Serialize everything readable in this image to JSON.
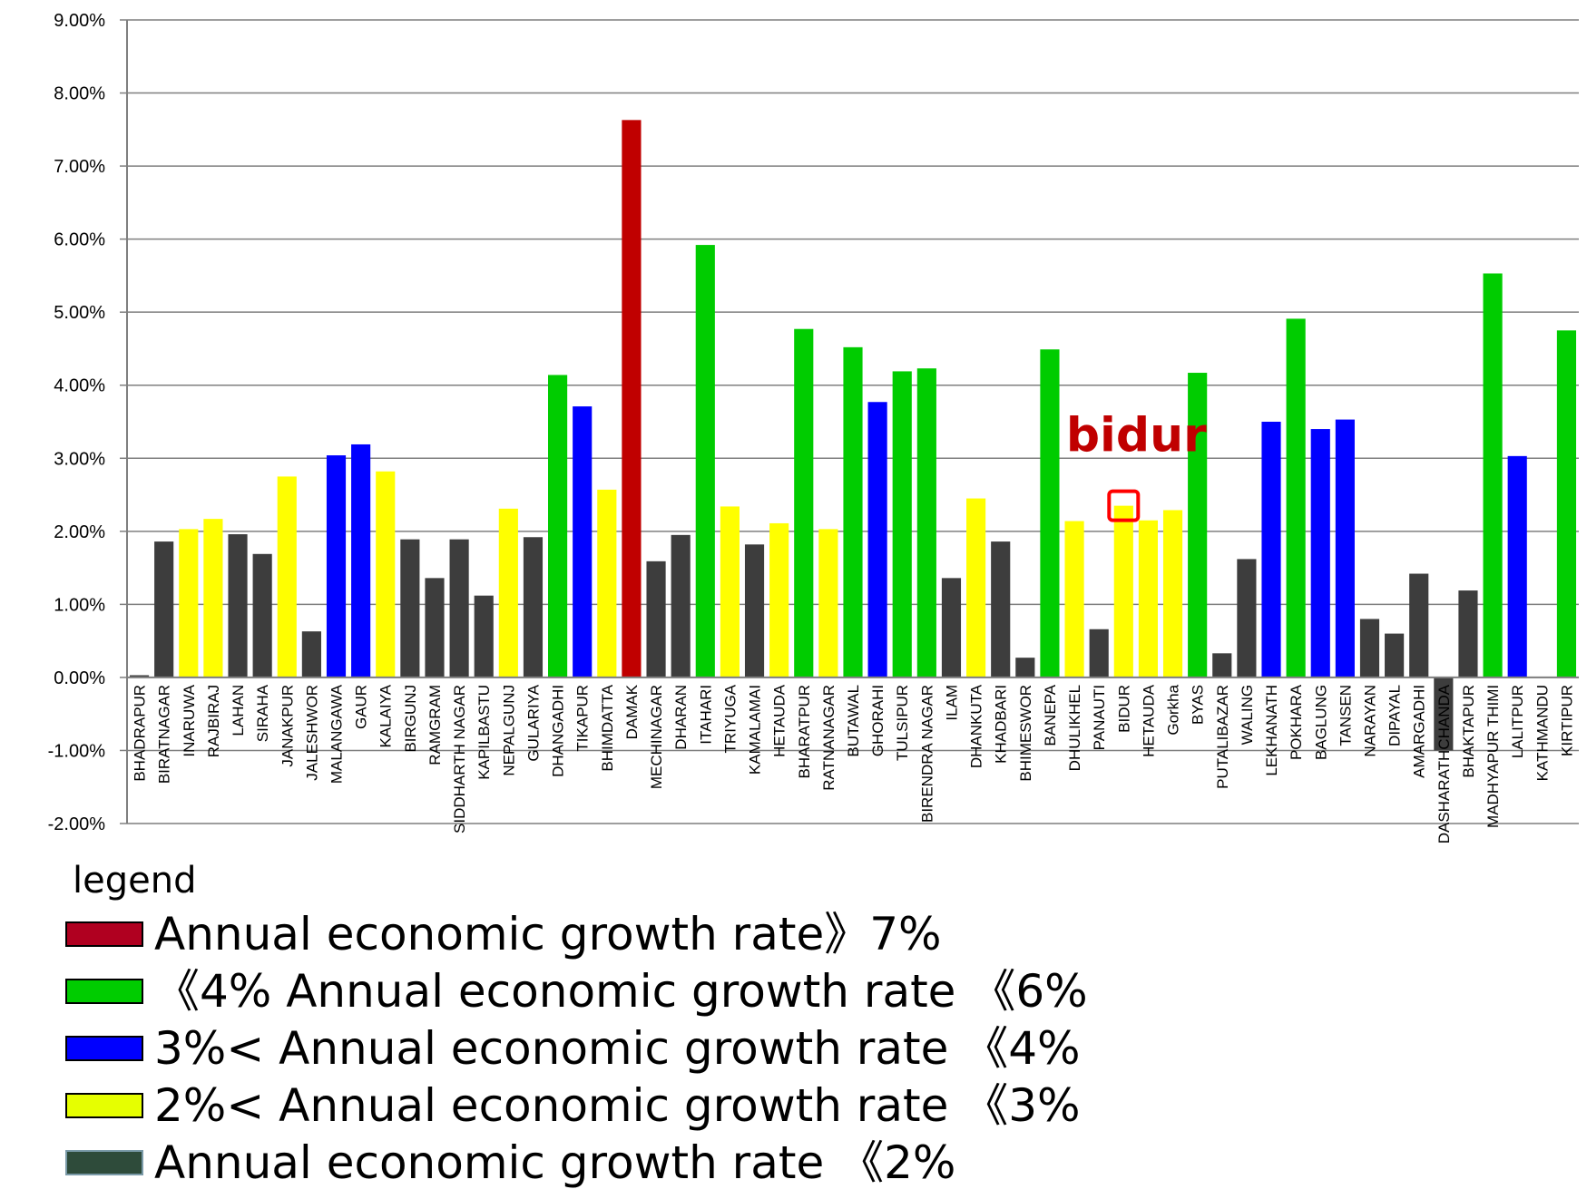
{
  "chart_data": {
    "type": "bar",
    "ylim": [
      -0.02,
      0.09
    ],
    "y_ticks": [
      "9.00%",
      "8.00%",
      "7.00%",
      "6.00%",
      "5.00%",
      "4.00%",
      "3.00%",
      "2.00%",
      "1.00%",
      "0.00%",
      "-1.00%",
      "-2.00%"
    ],
    "y_tick_values": [
      0.09,
      0.08,
      0.07,
      0.06,
      0.05,
      0.04,
      0.03,
      0.02,
      0.01,
      0.0,
      -0.01,
      -0.02
    ],
    "grid": true,
    "categories": [
      "BHADRAPUR",
      "BIRATNAGAR",
      "INARUWA",
      "RAJBIRAJ",
      "LAHAN",
      "SIRAHA",
      "JANAKPUR",
      "JALESHWOR",
      "MALANGAWA",
      "GAUR",
      "KALAIYA",
      "BIRGUNJ",
      "RAMGRAM",
      "SIDDHARTH NAGAR",
      "KAPILBASTU",
      "NEPALGUNJ",
      "GULARIYA",
      "DHANGADHI",
      "TIKAPUR",
      "BHIMDATTA",
      "DAMAK",
      "MECHINAGAR",
      "DHARAN",
      "ITAHARI",
      "TRIYUGA",
      "KAMALAMAI",
      "HETAUDA",
      "BHARATPUR",
      "RATNANAGAR",
      "BUTAWAL",
      "GHORAHI",
      "TULSIPUR",
      "BIRENDRA NAGAR",
      "ILAM",
      "DHANKUTA",
      "KHADBARI",
      "BHIMESWOR",
      "BANEPA",
      "DHULIKHEL",
      "PANAUTI",
      "BIDUR",
      "HETAUDA",
      "Gorkha",
      "BYAS",
      "PUTALIBAZAR",
      "WALING",
      "LEKHANATH",
      "POKHARA",
      "BAGLUNG",
      "TANSEN",
      "NARAYAN",
      "DIPAYAL",
      "AMARGADHI",
      "DASHARATHCHANDA",
      "BHAKTAPUR",
      "MADHYAPUR THIMI",
      "LALITPUR",
      "KATHMANDU",
      "KIRTIPUR"
    ],
    "values": [
      0.0003,
      0.0186,
      0.0203,
      0.0217,
      0.0196,
      0.0169,
      0.0275,
      0.0063,
      0.0304,
      0.0319,
      0.0282,
      0.0189,
      0.0136,
      0.0189,
      0.0112,
      0.0231,
      0.0192,
      0.0414,
      0.0371,
      0.0257,
      0.0763,
      0.0159,
      0.0195,
      0.0592,
      0.0234,
      0.0182,
      0.0211,
      0.0477,
      0.0203,
      0.0452,
      0.0377,
      0.0419,
      0.0423,
      0.0136,
      0.0245,
      0.0186,
      0.0027,
      0.0449,
      0.0214,
      0.0066,
      0.0235,
      0.0215,
      0.0229,
      0.0417,
      0.0033,
      0.0162,
      0.035,
      0.0491,
      0.034,
      0.0353,
      0.008,
      0.006,
      0.0142,
      -0.01,
      0.0119,
      0.0553,
      0.0303,
      0.0,
      0.0475
    ],
    "bar_colors": [
      "#3d3d3d",
      "#3d3d3d",
      "#ffff00",
      "#ffff00",
      "#3d3d3d",
      "#3d3d3d",
      "#ffff00",
      "#3d3d3d",
      "#0000ff",
      "#0000ff",
      "#ffff00",
      "#3d3d3d",
      "#3d3d3d",
      "#3d3d3d",
      "#3d3d3d",
      "#ffff00",
      "#3d3d3d",
      "#00cc00",
      "#0000ff",
      "#ffff00",
      "#c00000",
      "#3d3d3d",
      "#3d3d3d",
      "#00cc00",
      "#ffff00",
      "#3d3d3d",
      "#ffff00",
      "#00cc00",
      "#ffff00",
      "#00cc00",
      "#0000ff",
      "#00cc00",
      "#00cc00",
      "#3d3d3d",
      "#ffff00",
      "#3d3d3d",
      "#3d3d3d",
      "#00cc00",
      "#ffff00",
      "#3d3d3d",
      "#ffff00",
      "#ffff00",
      "#ffff00",
      "#00cc00",
      "#3d3d3d",
      "#3d3d3d",
      "#0000ff",
      "#00cc00",
      "#0000ff",
      "#0000ff",
      "#3d3d3d",
      "#3d3d3d",
      "#3d3d3d",
      "#3d3d3d",
      "#3d3d3d",
      "#00cc00",
      "#0000ff",
      "#3d3d3d",
      "#00cc00"
    ],
    "annotation": {
      "text": "bidur",
      "target_category_index": 40
    },
    "legend": {
      "title": "legend",
      "placement": "bottom-left",
      "items": [
        {
          "label": "Annual economic growth rate》7%",
          "color": "#b00020"
        },
        {
          "label": "《4% Annual economic growth rate 《6%",
          "color": "#00cc00"
        },
        {
          "label": "3%< Annual economic growth rate 《4%",
          "color": "#0000ff"
        },
        {
          "label": "2%< Annual economic growth rate 《3%",
          "color": "#e6ff00"
        },
        {
          "label": "Annual economic growth rate 《2%",
          "color": "#2e4b3a"
        }
      ]
    }
  }
}
